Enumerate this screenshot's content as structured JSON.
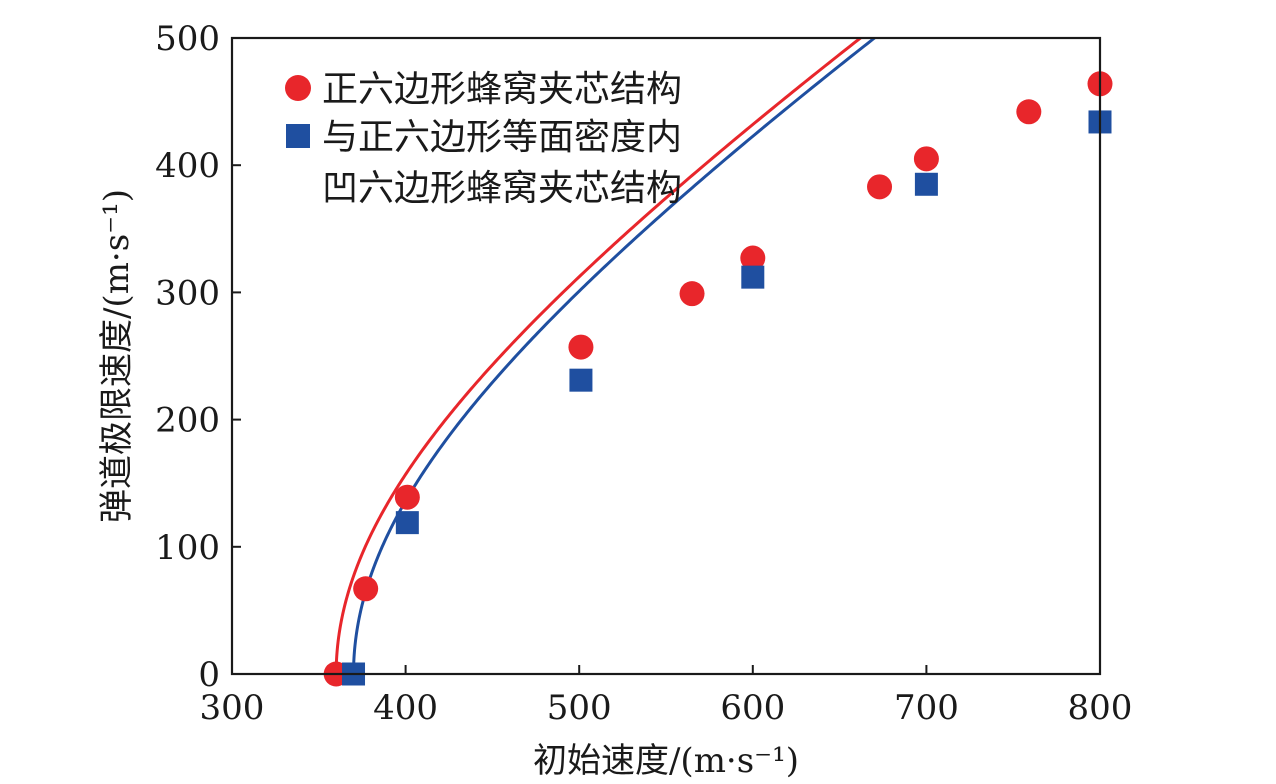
{
  "chart_data": {
    "type": "scatter",
    "xlabel": "初始速度/(m·s⁻¹)",
    "ylabel": "弹道极限速度/(m·s⁻¹)",
    "xlim": [
      300,
      800
    ],
    "ylim": [
      0,
      500
    ],
    "xticks": [
      300,
      400,
      500,
      600,
      700,
      800
    ],
    "yticks": [
      0,
      100,
      200,
      300,
      400,
      500
    ],
    "grid": false,
    "legend_position": "top-left",
    "series": [
      {
        "name": "正六边形蜂窝夹芯结构",
        "marker": "circle",
        "color": "#e8262b",
        "points": [
          {
            "x": 360,
            "y": 0
          },
          {
            "x": 377,
            "y": 67
          },
          {
            "x": 401,
            "y": 139
          },
          {
            "x": 501,
            "y": 257
          },
          {
            "x": 565,
            "y": 299
          },
          {
            "x": 600,
            "y": 327
          },
          {
            "x": 673,
            "y": 383
          },
          {
            "x": 700,
            "y": 405
          },
          {
            "x": 759,
            "y": 442
          },
          {
            "x": 800,
            "y": 464
          }
        ],
        "fit": {
          "v0": 360,
          "k": 0.9
        }
      },
      {
        "name_lines": [
          "与正六边形等面密度内",
          "凹六边形蜂窝夹芯结构"
        ],
        "marker": "square",
        "color": "#1f4fa0",
        "points": [
          {
            "x": 370,
            "y": 0
          },
          {
            "x": 401,
            "y": 119
          },
          {
            "x": 501,
            "y": 231
          },
          {
            "x": 600,
            "y": 312
          },
          {
            "x": 700,
            "y": 385
          },
          {
            "x": 800,
            "y": 434
          }
        ],
        "fit": {
          "v0": 370,
          "k": 0.895
        }
      }
    ]
  }
}
